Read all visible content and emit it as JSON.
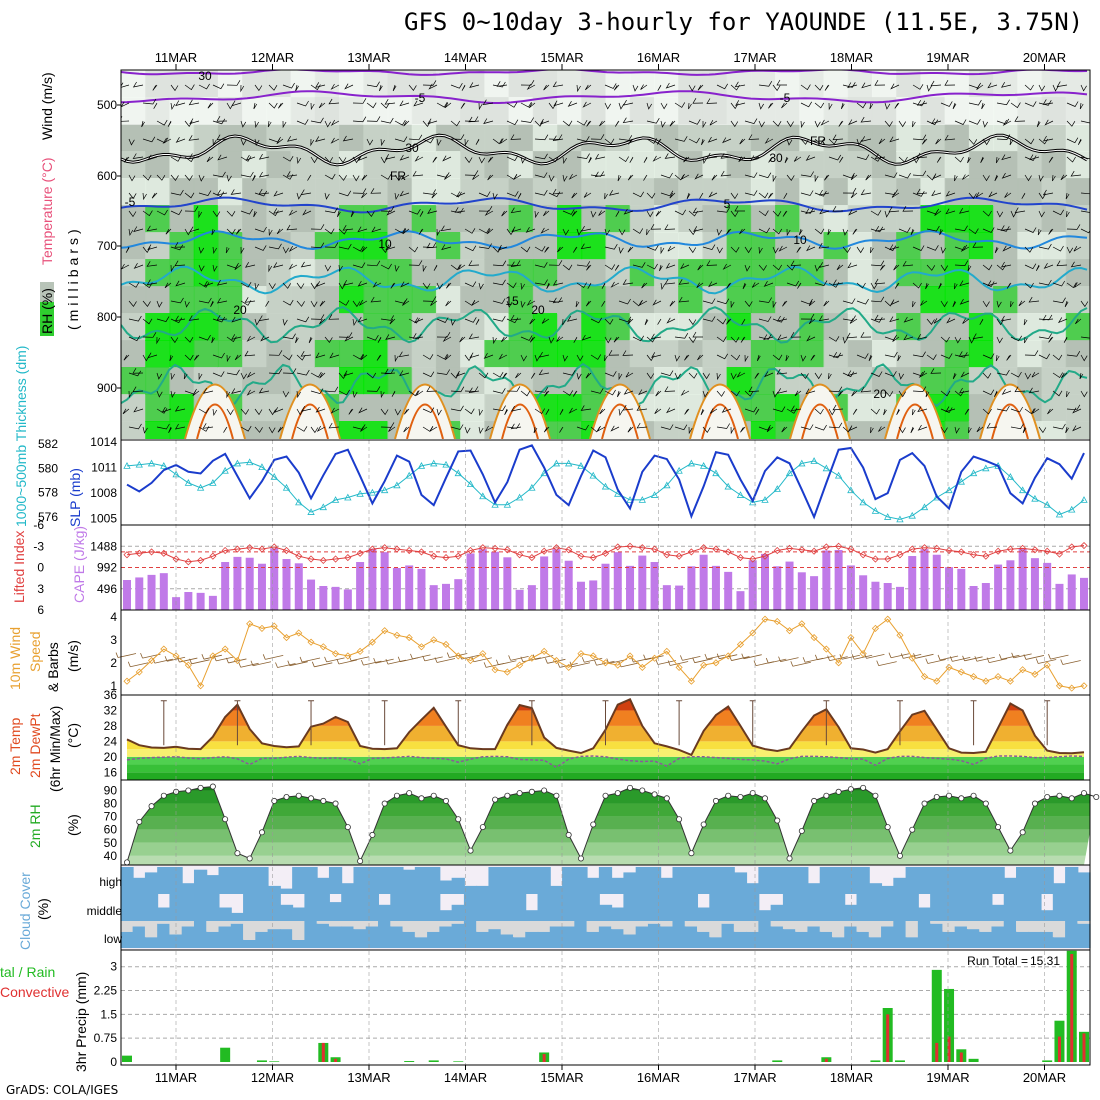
{
  "title": "GFS 0~10day 3-hourly for YAOUNDE (11.5E, 3.75N)",
  "footer": "GrADS: COLA/IGES",
  "dates": [
    "11MAR",
    "12MAR",
    "13MAR",
    "14MAR",
    "15MAR",
    "16MAR",
    "17MAR",
    "18MAR",
    "19MAR",
    "20MAR"
  ],
  "colors": {
    "rh_light": "#e4f0e4",
    "rh_mid": "#c8d4c8",
    "rh_grey": "#b4c0b4",
    "rh_green": "#3ccf3c",
    "rh_bright": "#00e600",
    "thick": "#22b8c8",
    "slp": "#1a3ccc",
    "cape": "#c07ae8",
    "li": "#e04040",
    "wind10": "#e8a030",
    "temp_dark": "#d04010",
    "temp_orange": "#f08020",
    "temp_yellow": "#f8e040",
    "dew": "#40c040",
    "rh2_dark": "#1a9a1a",
    "cloud": "#6aaad8",
    "cloud_bg": "#f3eef6",
    "cloud_grey": "#dadada",
    "precip_total": "#22bb22",
    "precip_conv": "#e03030",
    "freezing": "#000000",
    "t_neg": "#8822cc",
    "t_m5": "#2244cc",
    "t_10": "#2288dd",
    "t_15": "#22aacc",
    "t_20": "#22aa88",
    "t_25": "#e09020",
    "t_30": "#e06010"
  },
  "panels": {
    "upper": {
      "ylabel_parts": [
        "RH (%)",
        "Temperature (°C)",
        "Wind (m/s)"
      ],
      "unit_label": "(millibars)",
      "levels": [
        "500",
        "600",
        "700",
        "800",
        "900"
      ],
      "contour_labels": [
        "-5",
        "-5",
        "FR",
        "FR",
        "-5",
        "5",
        "10",
        "10",
        "15",
        "20",
        "20",
        "30",
        "30",
        "30",
        "20"
      ]
    },
    "thickness": {
      "left_label": "1000~500mb Thickness (dm)",
      "right_label": "SLP (mb)",
      "left_ticks": [
        "582",
        "580",
        "578",
        "576"
      ],
      "right_ticks": [
        "1014",
        "1011",
        "1008",
        "1005"
      ]
    },
    "cape": {
      "left_label": "Lifted Index",
      "right_label": "CAPE (J/kg)",
      "left_ticks": [
        "-6",
        "-3",
        "0",
        "3",
        "6"
      ],
      "right_ticks": [
        "1488",
        "992",
        "496"
      ]
    },
    "wind10": {
      "label_parts": [
        "10m Wind",
        "Speed",
        "& Barbs"
      ],
      "unit": "(m/s)",
      "ticks": [
        "4",
        "3",
        "2",
        "1"
      ]
    },
    "temp2m": {
      "label_parts": [
        "2m Temp",
        "2m DewPt",
        "(6hr Min/Max)"
      ],
      "unit": "(°C)",
      "ticks": [
        "36",
        "32",
        "28",
        "24",
        "20",
        "16"
      ]
    },
    "rh2m": {
      "label": "2m RH",
      "unit": "(%)",
      "ticks": [
        "90",
        "80",
        "70",
        "60",
        "50",
        "40"
      ]
    },
    "cloud": {
      "label": "Cloud Cover",
      "unit": "(%)",
      "rows": [
        "high",
        "middle",
        "low"
      ]
    },
    "precip": {
      "label_total": "tal / Rain",
      "label_conv": "Convective",
      "ylabel": "3hr Precip (mm)",
      "ticks": [
        "3",
        "2.25",
        "1.5",
        "0.75",
        "0"
      ],
      "run_total_label": "Run Total = ",
      "run_total_value": "15.31"
    }
  },
  "chart_data": [
    {
      "type": "line",
      "title": "1000~500mb Thickness (dm) and SLP (mb)",
      "x": "3-hourly steps, 11MAR to 20MAR",
      "series": [
        {
          "name": "Thickness (dm)",
          "ylim": [
            575.5,
            582
          ],
          "values": [
            580.2,
            580.3,
            580.4,
            580.2,
            579.5,
            578.8,
            578.4,
            578.8,
            579.8,
            580.4,
            580.5,
            580.1,
            579.3,
            578.4,
            577.2,
            576.4,
            576.8,
            577.4,
            577.6,
            577.9,
            578.0,
            578.2,
            578.6,
            579.4,
            580.2,
            580.4,
            580.3,
            579.6,
            578.7,
            577.7,
            577.0,
            577.0,
            577.6,
            578.4,
            579.6,
            580.4,
            580.4,
            580.2,
            579.4,
            578.5,
            577.9,
            577.4,
            577.4,
            577.8,
            578.6,
            579.8,
            580.4,
            580.2,
            579.6,
            578.5,
            577.8,
            577.2,
            577.4,
            578.3,
            579.6,
            580.4,
            580.6,
            580.0,
            579.4,
            578.2,
            577.2,
            576.5,
            576.0,
            575.8,
            576.1,
            576.8,
            577.6,
            578.2,
            578.9,
            579.6,
            580.0,
            580.2,
            579.3,
            578.2,
            577.5,
            577.0,
            576.2,
            576.6,
            577.4
          ]
        },
        {
          "name": "SLP (mb)",
          "ylim": [
            1004.5,
            1014
          ],
          "values": [
            1009.0,
            1008.2,
            1009.2,
            1010.7,
            1011.3,
            1010.5,
            1010.3,
            1011.8,
            1012.6,
            1010.0,
            1007.4,
            1009.4,
            1011.9,
            1012.3,
            1010.4,
            1007.4,
            1010.1,
            1012.6,
            1013.1,
            1010.0,
            1006.8,
            1009.4,
            1012.4,
            1011.7,
            1007.8,
            1006.6,
            1009.8,
            1012.9,
            1013.0,
            1010.2,
            1006.9,
            1009.3,
            1013.1,
            1013.6,
            1011.0,
            1007.8,
            1006.6,
            1010.0,
            1013.0,
            1012.2,
            1008.4,
            1006.2,
            1010.5,
            1012.4,
            1012.0,
            1009.6,
            1005.3,
            1008.8,
            1012.8,
            1012.5,
            1009.6,
            1007.1,
            1010.6,
            1012.2,
            1011.5,
            1008.4,
            1005.2,
            1009.2,
            1013.1,
            1013.3,
            1011.0,
            1007.3,
            1008.0,
            1011.9,
            1012.7,
            1011.2,
            1007.6,
            1006.2,
            1010.5,
            1012.3,
            1011.8,
            1011.2,
            1008.0,
            1006.8,
            1009.8,
            1012.1,
            1011.4,
            1009.7,
            1012.7
          ]
        }
      ]
    },
    {
      "type": "bar",
      "title": "CAPE (J/kg) and Lifted Index",
      "cape_ylim": [
        0,
        1984
      ],
      "li_ylim": [
        6,
        -6
      ],
      "cape_values": [
        700,
        760,
        820,
        860,
        300,
        420,
        400,
        330,
        1120,
        1240,
        1220,
        1080,
        1440,
        1190,
        1090,
        710,
        560,
        540,
        480,
        1120,
        1430,
        1350,
        980,
        1040,
        960,
        580,
        610,
        720,
        1320,
        1420,
        1360,
        1230,
        470,
        580,
        1250,
        1420,
        1150,
        660,
        690,
        1080,
        1350,
        1030,
        1270,
        1120,
        580,
        570,
        1020,
        1290,
        1030,
        890,
        440,
        1160,
        1310,
        1020,
        1130,
        880,
        790,
        1390,
        1400,
        1040,
        810,
        660,
        630,
        540,
        1260,
        1420,
        1290,
        1000,
        960,
        560,
        630,
        1060,
        1160,
        1430,
        1210,
        1100,
        610,
        830,
        750
      ],
      "li_values": [
        -1.8,
        -2.0,
        -2.2,
        -2.0,
        -1.2,
        -0.8,
        -1.0,
        -1.6,
        -2.4,
        -2.6,
        -2.8,
        -2.6,
        -2.9,
        -2.4,
        -1.6,
        -1.2,
        -1.0,
        -1.2,
        -1.4,
        -2.0,
        -2.6,
        -2.8,
        -2.6,
        -2.4,
        -2.2,
        -1.6,
        -1.4,
        -1.6,
        -2.4,
        -2.8,
        -2.7,
        -2.5,
        -1.8,
        -1.4,
        -2.3,
        -2.8,
        -2.5,
        -1.6,
        -1.4,
        -2.0,
        -2.9,
        -3.0,
        -2.8,
        -2.6,
        -1.8,
        -1.6,
        -2.2,
        -2.8,
        -2.6,
        -2.2,
        -1.4,
        -1.2,
        -1.6,
        -2.4,
        -2.7,
        -2.5,
        -2.3,
        -2.9,
        -3.0,
        -2.6,
        -1.8,
        -1.2,
        -1.2,
        -1.8,
        -2.6,
        -2.8,
        -2.7,
        -2.4,
        -2.2,
        -1.8,
        -1.6,
        -2.3,
        -2.6,
        -2.7,
        -2.5,
        -2.3,
        -1.9,
        -2.9,
        -3.1
      ]
    },
    {
      "type": "line",
      "title": "10m Wind Speed (m/s)",
      "ylim": [
        0.6,
        4.3
      ],
      "values": [
        1.2,
        1.6,
        2.1,
        2.6,
        2.3,
        1.9,
        1.0,
        2.3,
        2.6,
        2.1,
        3.7,
        3.5,
        3.6,
        3.1,
        3.3,
        2.9,
        2.7,
        2.4,
        2.3,
        2.5,
        2.9,
        3.4,
        3.2,
        3.1,
        2.7,
        3.0,
        2.8,
        2.3,
        2.1,
        2.4,
        1.7,
        1.6,
        1.9,
        2.2,
        2.5,
        2.1,
        1.8,
        2.4,
        2.3,
        2.0,
        1.9,
        2.3,
        1.8,
        2.2,
        2.5,
        1.8,
        1.2,
        1.9,
        2.0,
        2.3,
        2.8,
        3.3,
        3.9,
        3.8,
        3.4,
        3.7,
        3.1,
        2.6,
        2.0,
        3.1,
        2.4,
        3.5,
        3.9,
        3.2,
        2.2,
        1.4,
        1.2,
        1.8,
        1.6,
        1.4,
        1.2,
        1.4,
        1.2,
        1.7,
        1.5,
        1.9,
        1.0,
        0.9,
        1.0
      ]
    },
    {
      "type": "area",
      "title": "2m Temp and 2m DewPt (°C), 6hr Min/Max",
      "ylim": [
        14,
        36
      ],
      "temp_values": [
        24.5,
        23.0,
        22.4,
        22.3,
        22.6,
        22.1,
        22.0,
        25.2,
        30.3,
        33.5,
        27.2,
        23.5,
        22.8,
        22.5,
        22.7,
        27.8,
        28.6,
        30.3,
        29.0,
        22.8,
        22.1,
        22.0,
        22.2,
        26.4,
        29.6,
        32.7,
        27.8,
        23.0,
        22.2,
        22.0,
        22.0,
        28.3,
        33.4,
        32.6,
        25.0,
        22.3,
        21.6,
        21.0,
        22.2,
        27.0,
        33.5,
        34.9,
        28.0,
        23.5,
        22.7,
        21.8,
        20.5,
        26.7,
        30.8,
        33.0,
        28.0,
        22.9,
        22.0,
        21.5,
        22.2,
        26.6,
        30.7,
        32.3,
        27.7,
        22.2,
        21.9,
        21.1,
        22.0,
        26.6,
        30.9,
        31.9,
        27.1,
        22.2,
        21.1,
        21.0,
        21.3,
        27.5,
        33.8,
        32.0,
        25.5,
        21.6,
        21.0,
        20.9,
        21.2
      ],
      "dewpoint_values": [
        19.2,
        19.6,
        19.8,
        19.9,
        20.0,
        19.7,
        19.5,
        19.8,
        20.0,
        19.5,
        18.0,
        19.6,
        19.6,
        19.9,
        20.1,
        19.8,
        19.6,
        19.7,
        19.4,
        18.2,
        19.6,
        19.7,
        19.9,
        20.1,
        19.8,
        19.6,
        19.5,
        18.6,
        19.4,
        20.0,
        20.1,
        20.0,
        19.3,
        19.2,
        19.1,
        17.3,
        19.4,
        20.1,
        20.2,
        20.0,
        19.4,
        19.0,
        18.8,
        18.9,
        17.6,
        19.6,
        20.0,
        20.0,
        19.8,
        19.6,
        19.3,
        19.2,
        18.9,
        18.2,
        19.5,
        20.1,
        20.1,
        20.0,
        19.8,
        19.5,
        19.4,
        17.8,
        19.6,
        20.1,
        20.1,
        19.8,
        19.6,
        19.4,
        19.0,
        18.0,
        19.6,
        20.2,
        20.2,
        20.1,
        19.8,
        19.8,
        20.0,
        20.2,
        20.1
      ]
    },
    {
      "type": "area",
      "title": "2m RH (%)",
      "ylim": [
        33,
        98
      ],
      "values": [
        35,
        66,
        78,
        86,
        89,
        90,
        92,
        93,
        68,
        42,
        38,
        58,
        82,
        85,
        86,
        84,
        82,
        80,
        62,
        36,
        56,
        80,
        86,
        88,
        84,
        86,
        82,
        68,
        44,
        62,
        83,
        86,
        88,
        89,
        90,
        86,
        56,
        38,
        64,
        86,
        88,
        92,
        90,
        87,
        84,
        68,
        42,
        64,
        82,
        86,
        85,
        88,
        84,
        67,
        38,
        59,
        82,
        86,
        89,
        91,
        92,
        86,
        62,
        40,
        60,
        80,
        85,
        86,
        84,
        86,
        80,
        62,
        44,
        58,
        80,
        85,
        86,
        84,
        88,
        85
      ]
    },
    {
      "type": "bar",
      "title": "Cloud Cover (%) high / middle / low",
      "rows": [
        "high",
        "middle",
        "low"
      ],
      "ylim": [
        0,
        100
      ],
      "high_values": [
        100,
        60,
        80,
        100,
        100,
        40,
        90,
        70,
        100,
        100,
        100,
        100,
        30,
        20,
        100,
        100,
        60,
        100,
        40,
        100,
        100,
        100,
        100,
        90,
        100,
        100,
        50,
        60,
        30,
        30,
        100,
        100,
        100,
        100,
        100,
        30,
        100,
        100,
        60,
        100,
        60,
        80,
        100,
        100,
        60,
        100,
        100,
        100,
        100,
        100,
        80,
        40,
        100,
        100,
        100,
        100,
        40,
        100,
        100,
        100,
        100,
        40,
        30,
        60,
        100,
        100,
        100,
        100,
        100,
        100,
        100,
        100,
        60,
        100,
        100,
        100,
        40,
        100,
        80
      ],
      "middle_values": [
        100,
        100,
        100,
        50,
        100,
        100,
        100,
        100,
        50,
        30,
        100,
        100,
        100,
        60,
        50,
        100,
        100,
        70,
        100,
        100,
        100,
        60,
        100,
        100,
        100,
        100,
        40,
        60,
        100,
        100,
        100,
        100,
        100,
        40,
        100,
        100,
        100,
        100,
        100,
        60,
        50,
        100,
        100,
        100,
        100,
        100,
        100,
        50,
        100,
        100,
        100,
        100,
        40,
        60,
        100,
        100,
        100,
        100,
        100,
        60,
        100,
        100,
        100,
        100,
        100,
        50,
        100,
        100,
        100,
        100,
        100,
        60,
        100,
        100,
        100,
        40,
        100,
        100,
        100
      ],
      "low_values": [
        60,
        80,
        40,
        90,
        50,
        80,
        100,
        60,
        80,
        90,
        30,
        60,
        70,
        70,
        30,
        100,
        90,
        80,
        80,
        70,
        80,
        100,
        80,
        60,
        40,
        60,
        80,
        90,
        100,
        60,
        70,
        50,
        40,
        60,
        60,
        80,
        80,
        100,
        60,
        80,
        70,
        50,
        80,
        90,
        80,
        100,
        80,
        60,
        40,
        90,
        60,
        60,
        100,
        80,
        70,
        60,
        80,
        60,
        40,
        80,
        60,
        40,
        80,
        100,
        40,
        100,
        90,
        60,
        80,
        70,
        60,
        80,
        100,
        60,
        60,
        60,
        40,
        100,
        90
      ]
    },
    {
      "type": "bar",
      "title": "3hr Precip (mm) Total / Rain / Convective",
      "ylim": [
        0,
        3.4
      ],
      "total_values": [
        0.2,
        0,
        0,
        0,
        0,
        0,
        0,
        0,
        0.45,
        0,
        0,
        0.05,
        0.02,
        0,
        0,
        0,
        0.6,
        0.15,
        0,
        0,
        0,
        0,
        0,
        0.03,
        0,
        0.05,
        0,
        0.02,
        0,
        0,
        0,
        0,
        0,
        0,
        0.3,
        0,
        0,
        0,
        0,
        0,
        0,
        0,
        0,
        0,
        0,
        0,
        0,
        0,
        0,
        0,
        0,
        0,
        0,
        0.05,
        0,
        0,
        0,
        0.15,
        0,
        0,
        0,
        0.05,
        1.7,
        0.05,
        0,
        0,
        2.9,
        2.3,
        0.4,
        0.1,
        0,
        0,
        0,
        0,
        0,
        0.05,
        1.3,
        3.5,
        0.95
      ],
      "convective_values": [
        0,
        0,
        0,
        0,
        0,
        0,
        0,
        0,
        0,
        0,
        0,
        0,
        0,
        0,
        0,
        0,
        0.6,
        0.1,
        0,
        0,
        0,
        0,
        0,
        0,
        0,
        0,
        0,
        0,
        0,
        0,
        0,
        0,
        0,
        0,
        0.25,
        0,
        0,
        0,
        0,
        0,
        0,
        0,
        0,
        0,
        0,
        0,
        0,
        0,
        0,
        0,
        0,
        0,
        0,
        0,
        0,
        0,
        0,
        0.1,
        0,
        0,
        0,
        0,
        1.5,
        0,
        0,
        0,
        0.6,
        0.8,
        0.3,
        0,
        0,
        0,
        0,
        0,
        0,
        0,
        0.8,
        3.4,
        0.9
      ]
    }
  ]
}
